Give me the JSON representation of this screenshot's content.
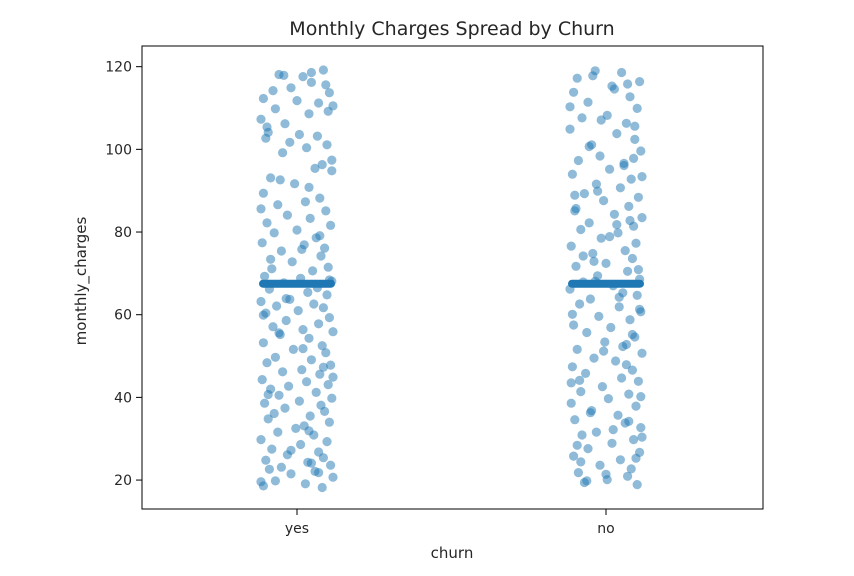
{
  "chart_data": {
    "type": "scatter",
    "title": "Monthly Charges Spread by Churn",
    "xlabel": "churn",
    "ylabel": "monthly_charges",
    "categories": [
      "yes",
      "no"
    ],
    "ylim": [
      13,
      125
    ],
    "yticks": [
      20,
      40,
      60,
      80,
      100,
      120
    ],
    "grid": false,
    "point_color": "#1f77b4",
    "mean_line_color": "#1f77b4",
    "means": [
      67.5,
      67.5
    ],
    "series": [
      {
        "category": "yes",
        "jitter": [
          -0.28,
          -0.15,
          0.05,
          0.22,
          0.3,
          -0.24,
          0.1,
          -0.05,
          0.18,
          -0.3,
          0.12,
          -0.18,
          0.27,
          0.02,
          -0.1,
          0.25,
          -0.26,
          0.08,
          -0.12,
          0.21,
          0.29,
          -0.22,
          0.15,
          -0.02,
          -0.28,
          0.19,
          0.07,
          -0.16,
          0.24,
          -0.08,
          0.11,
          -0.25,
          0.28,
          0.0,
          -0.19,
          0.16,
          -0.29,
          0.06,
          0.23,
          -0.13,
          0.2,
          -0.04,
          0.26,
          -0.21,
          0.13,
          -0.27,
          0.03,
          0.29,
          -0.11,
          0.17,
          -0.23,
          0.09,
          0.25,
          -0.06,
          -0.3,
          0.14,
          -0.17,
          0.22,
          0.01,
          -0.26,
          0.27,
          -0.09,
          0.18,
          -0.2,
          0.05,
          0.3,
          -0.14,
          0.1,
          -0.28,
          0.21,
          -0.03,
          0.24,
          -0.18,
          0.12,
          -0.25,
          0.28,
          0.04,
          -0.12,
          0.19,
          -0.29,
          0.08,
          0.26,
          -0.07,
          -0.22,
          0.16,
          -0.15,
          0.29,
          0.02,
          -0.27,
          0.2,
          -0.1,
          0.23,
          -0.19,
          0.11,
          -0.24,
          0.27,
          0.06,
          -0.01,
          -0.16,
          0.14,
          -0.3,
          0.25,
          0.03,
          -0.21,
          0.18,
          -0.08,
          0.22,
          -0.26,
          0.09,
          0.28,
          -0.13,
          -0.23,
          0.15,
          -0.05,
          0.3,
          -0.18,
          0.07,
          -0.28,
          0.21,
          0.12,
          -0.11,
          0.24,
          -0.2,
          0.0,
          0.26,
          -0.25,
          0.17,
          -0.06,
          0.29,
          -0.14,
          0.1,
          -0.3,
          0.19,
          0.04,
          -0.22,
          0.27,
          -0.09
        ],
        "values": [
          112.3,
          118.1,
          117.6,
          119.2,
          110.5,
          104.1,
          108.6,
          114.9,
          111.2,
          107.3,
          116.2,
          109.8,
          113.7,
          103.6,
          106.2,
          101.1,
          102.7,
          100.4,
          99.2,
          96.3,
          94.8,
          93.1,
          95.4,
          91.7,
          89.4,
          88.2,
          87.3,
          86.6,
          85.1,
          84.1,
          83.3,
          82.2,
          81.6,
          80.5,
          79.8,
          78.6,
          77.4,
          76.9,
          76.1,
          75.4,
          74.2,
          72.8,
          71.5,
          71.1,
          70.6,
          69.3,
          68.8,
          68.1,
          67.7,
          66.5,
          66.2,
          65.4,
          64.8,
          63.7,
          63.2,
          62.6,
          62.1,
          61.7,
          61.0,
          60.4,
          59.3,
          58.6,
          57.8,
          57.1,
          56.4,
          55.9,
          55.2,
          54.3,
          53.2,
          52.5,
          51.6,
          50.8,
          49.7,
          49.1,
          48.4,
          47.8,
          46.7,
          46.2,
          45.6,
          44.3,
          43.8,
          43.1,
          42.7,
          42.0,
          41.2,
          40.5,
          39.8,
          39.1,
          38.6,
          38.1,
          37.4,
          36.6,
          36.1,
          35.5,
          34.8,
          34.0,
          33.1,
          32.5,
          31.6,
          30.9,
          29.8,
          29.3,
          28.6,
          27.5,
          26.8,
          26.1,
          25.4,
          24.8,
          24.3,
          23.6,
          23.1,
          22.6,
          22.1,
          21.5,
          20.7,
          19.8,
          19.1,
          18.6,
          18.2,
          118.6,
          117.9,
          115.6,
          114.2,
          111.8,
          109.2,
          105.4,
          103.2,
          101.7,
          97.4,
          92.6,
          90.8,
          85.6,
          79.1,
          75.8,
          73.4,
          68.4,
          63.9,
          59.9,
          55.6,
          51.8,
          47.3,
          44.9,
          40.7,
          31.9,
          27.2,
          21.8,
          19.6,
          24.1
        ]
      },
      {
        "category": "no",
        "jitter": [
          -0.24,
          0.13,
          0.28,
          -0.09,
          0.05,
          -0.27,
          0.2,
          -0.15,
          0.26,
          0.01,
          -0.2,
          0.17,
          -0.3,
          0.09,
          0.24,
          -0.12,
          0.29,
          -0.05,
          -0.23,
          0.15,
          0.03,
          -0.28,
          0.21,
          -0.08,
          0.12,
          -0.18,
          0.27,
          -0.02,
          0.19,
          -0.26,
          0.07,
          0.3,
          -0.14,
          0.23,
          -0.21,
          0.1,
          -0.04,
          0.25,
          -0.29,
          0.16,
          -0.11,
          0.22,
          0.0,
          -0.25,
          0.18,
          -0.07,
          0.28,
          -0.19,
          0.06,
          -0.3,
          0.14,
          0.26,
          -0.13,
          -0.22,
          0.11,
          0.29,
          -0.06,
          0.2,
          -0.27,
          0.04,
          -0.16,
          0.24,
          -0.01,
          0.17,
          -0.24,
          0.3,
          -0.1,
          0.08,
          -0.28,
          0.22,
          -0.17,
          0.13,
          0.27,
          -0.03,
          -0.21,
          0.19,
          0.02,
          -0.29,
          0.25,
          -0.12,
          0.1,
          -0.26,
          0.16,
          0.29,
          -0.08,
          -0.2,
          0.23,
          0.05,
          -0.15,
          0.28,
          -0.27,
          0.12,
          -0.05,
          0.21,
          -0.23,
          0.18,
          0.01,
          -0.18,
          0.26,
          -0.11,
          0.07,
          -0.3,
          0.24,
          -0.14,
          0.15,
          0.3,
          -0.07,
          -0.25,
          0.2,
          0.03,
          -0.19,
          0.27,
          -0.09,
          0.11,
          -0.28,
          0.22,
          -0.02,
          0.17,
          -0.22,
          0.29,
          -0.13,
          0.06,
          -0.24,
          0.25,
          0.0,
          -0.16,
          0.19,
          -0.29,
          0.14,
          0.28,
          -0.1,
          0.09,
          -0.26,
          0.23,
          -0.04,
          0.18,
          -0.21,
          0.3
        ],
        "values": [
          117.2,
          118.6,
          116.4,
          119.0,
          115.3,
          113.8,
          112.7,
          111.4,
          109.9,
          108.2,
          107.6,
          106.3,
          104.9,
          103.8,
          102.4,
          101.1,
          99.6,
          98.4,
          97.3,
          96.1,
          95.2,
          94.0,
          92.8,
          91.6,
          90.7,
          89.3,
          88.4,
          87.6,
          86.2,
          85.1,
          84.3,
          83.5,
          82.2,
          81.4,
          80.6,
          79.8,
          78.5,
          77.3,
          76.6,
          75.5,
          74.8,
          73.6,
          72.4,
          71.7,
          70.5,
          69.4,
          68.6,
          67.9,
          67.0,
          66.2,
          65.3,
          64.7,
          63.8,
          62.6,
          61.9,
          60.7,
          59.6,
          58.8,
          57.5,
          56.9,
          55.7,
          54.6,
          53.4,
          52.8,
          51.6,
          50.7,
          49.5,
          48.8,
          47.4,
          46.6,
          45.8,
          44.7,
          43.9,
          42.6,
          41.4,
          40.8,
          39.7,
          38.6,
          37.9,
          36.8,
          35.7,
          34.6,
          33.8,
          32.7,
          31.6,
          30.9,
          29.8,
          28.9,
          27.6,
          26.7,
          25.8,
          24.9,
          23.6,
          22.7,
          21.8,
          20.9,
          20.1,
          19.4,
          18.9,
          117.8,
          114.6,
          110.3,
          105.6,
          100.7,
          96.6,
          93.4,
          89.9,
          85.7,
          82.8,
          78.9,
          74.2,
          70.9,
          68.1,
          64.2,
          60.1,
          55.2,
          51.2,
          47.9,
          44.1,
          40.2,
          36.3,
          32.2,
          28.4,
          25.3,
          21.4,
          19.8,
          34.2,
          43.5,
          52.3,
          61.3,
          72.9,
          81.8,
          88.9,
          97.8,
          107.1,
          115.8,
          24.4,
          30.4
        ]
      }
    ]
  }
}
